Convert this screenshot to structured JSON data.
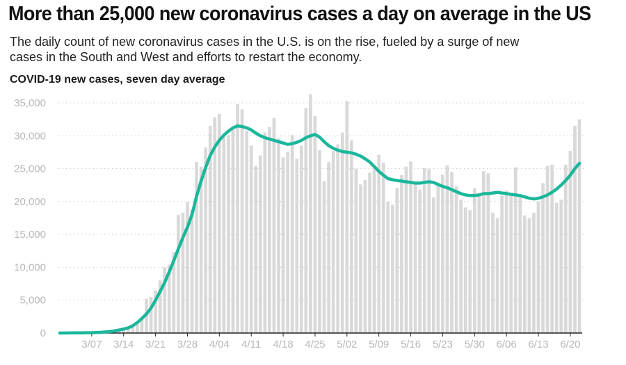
{
  "header": {
    "title": "More than 25,000 new coronavirus cases a day on average in the US",
    "subtitle": "The daily count of new coronavirus cases in the U.S. is on the rise, fueled by a surge of new cases in the South and West and efforts to restart the economy."
  },
  "chart_data": {
    "type": "bar",
    "title": "COVID-19 new cases, seven day average",
    "xlabel": "",
    "ylabel": "",
    "ylim": [
      0,
      37000
    ],
    "grid": true,
    "y_ticks": [
      0,
      5000,
      10000,
      15000,
      20000,
      25000,
      30000,
      35000
    ],
    "y_tick_labels": [
      "0",
      "5,000",
      "10,000",
      "15,000",
      "20,000",
      "25,000",
      "30,000",
      "35,000"
    ],
    "x_tick_labels": [
      {
        "label": "3/07",
        "index": 7
      },
      {
        "label": "3/14",
        "index": 14
      },
      {
        "label": "3/21",
        "index": 21
      },
      {
        "label": "3/28",
        "index": 28
      },
      {
        "label": "4/04",
        "index": 35
      },
      {
        "label": "4/11",
        "index": 42
      },
      {
        "label": "4/18",
        "index": 49
      },
      {
        "label": "4/25",
        "index": 56
      },
      {
        "label": "5/02",
        "index": 63
      },
      {
        "label": "5/09",
        "index": 70
      },
      {
        "label": "5/16",
        "index": 77
      },
      {
        "label": "5/23",
        "index": 84
      },
      {
        "label": "5/30",
        "index": 91
      },
      {
        "label": "6/06",
        "index": 98
      },
      {
        "label": "6/13",
        "index": 105
      },
      {
        "label": "6/20",
        "index": 112
      }
    ],
    "colors": {
      "bars": "#d9d9d9",
      "line": "#1bb79b",
      "grid": "#c8c8c8",
      "axis": "#222222"
    },
    "series": [
      {
        "type": "bar",
        "values": [
          0,
          5,
          5,
          10,
          20,
          30,
          40,
          60,
          80,
          100,
          150,
          200,
          300,
          500,
          600,
          700,
          1100,
          1500,
          2300,
          5200,
          5500,
          6500,
          8000,
          10000,
          10400,
          12300,
          18000,
          18300,
          19900,
          18800,
          26000,
          25300,
          28200,
          31500,
          32800,
          33300,
          29900,
          30100,
          30900,
          34800,
          34000,
          30800,
          28500,
          25400,
          27000,
          30500,
          31300,
          32700,
          29600,
          26700,
          27500,
          30100,
          26500,
          28500,
          34200,
          36300,
          33000,
          27800,
          23100,
          26000,
          27700,
          28700,
          30500,
          35300,
          29300,
          25000,
          22600,
          23300,
          24400,
          24900,
          27100,
          25900,
          20000,
          19500,
          22100,
          24000,
          25300,
          26100,
          23000,
          21800,
          25100,
          25000,
          20600,
          22500,
          24100,
          25500,
          24500,
          22300,
          20300,
          19100,
          18700,
          22000,
          21200,
          24600,
          24300,
          18300,
          17500,
          20900,
          21700,
          20900,
          25200,
          21100,
          17900,
          17500,
          18300,
          20000,
          22800,
          25400,
          25600,
          19800,
          20300,
          25600,
          27700,
          31500,
          32500
        ]
      },
      {
        "type": "line",
        "values": [
          0,
          0,
          10,
          20,
          20,
          30,
          40,
          50,
          80,
          110,
          160,
          220,
          320,
          450,
          600,
          780,
          1100,
          1600,
          2200,
          2900,
          3800,
          5000,
          6300,
          7700,
          9300,
          11000,
          12800,
          14500,
          16100,
          18000,
          20800,
          23100,
          25200,
          27000,
          28300,
          29300,
          30100,
          30700,
          31200,
          31500,
          31400,
          31200,
          30900,
          30400,
          30000,
          29700,
          29500,
          29300,
          29100,
          28900,
          28700,
          28800,
          29000,
          29300,
          29700,
          30000,
          30200,
          29800,
          29100,
          28500,
          28100,
          27800,
          27600,
          27500,
          27400,
          27200,
          26900,
          26500,
          26000,
          25300,
          24600,
          24000,
          23500,
          23300,
          23200,
          23100,
          23000,
          22900,
          22800,
          22800,
          22900,
          23000,
          22900,
          22600,
          22300,
          22100,
          21800,
          21500,
          21200,
          21000,
          20900,
          20900,
          21000,
          21200,
          21200,
          21300,
          21400,
          21300,
          21200,
          21100,
          21000,
          20900,
          20700,
          20500,
          20400,
          20500,
          20700,
          21000,
          21400,
          21900,
          22500,
          23200,
          24000,
          25000,
          25800
        ]
      }
    ]
  }
}
